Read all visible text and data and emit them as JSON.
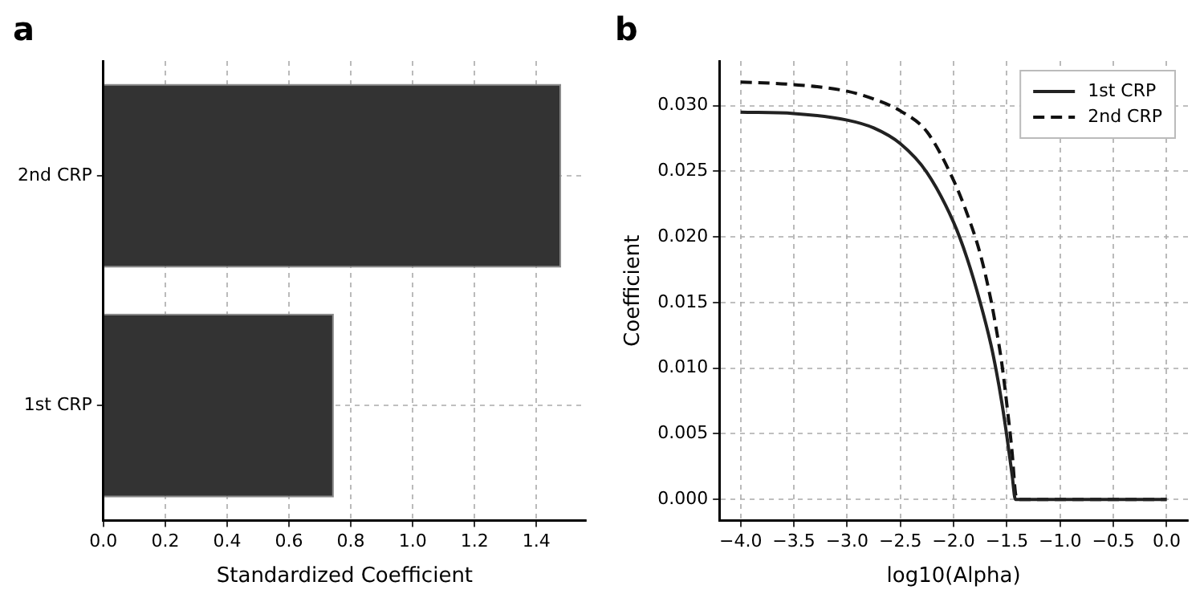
{
  "chart_data": [
    {
      "type": "bar",
      "title": "a",
      "orientation": "horizontal",
      "categories": [
        "2nd CRP",
        "1st CRP"
      ],
      "values": [
        1.48,
        0.745
      ],
      "color": "#333333",
      "xlabel": "Standardized Coefficient",
      "xlim": [
        0,
        1.56
      ],
      "xticks": [
        {
          "value": 0,
          "label": "0.0"
        },
        {
          "value": 0.2,
          "label": "0.2"
        },
        {
          "value": 0.4,
          "label": "0.4"
        },
        {
          "value": 0.6,
          "label": "0.6"
        },
        {
          "value": 0.8,
          "label": "0.8"
        },
        {
          "value": 1,
          "label": "1.0"
        },
        {
          "value": 1.2,
          "label": "1.2"
        },
        {
          "value": 1.4,
          "label": "1.4"
        }
      ],
      "grid": true,
      "legend": false
    },
    {
      "type": "line",
      "title": "b",
      "xlabel": "log10(Alpha)",
      "ylabel": "Coefficient",
      "x": [
        -4,
        -3.5,
        -3,
        -2.75,
        -2.5,
        -2.25,
        -2,
        -1.875,
        -1.75,
        -1.65,
        -1.6,
        -1.55,
        -1.5,
        -1.45,
        -1.42,
        -1.4,
        -1,
        -0.5,
        0
      ],
      "series": [
        {
          "name": "1st CRP",
          "color": "#222222",
          "line_style": "solid",
          "values": [
            0.0295,
            0.0294,
            0.0289,
            0.0283,
            0.0271,
            0.0249,
            0.0211,
            0.0184,
            0.015,
            0.0118,
            0.0098,
            0.0075,
            0.0048,
            0.0018,
            0,
            0,
            0,
            0,
            0
          ]
        },
        {
          "name": "2nd CRP",
          "color": "#111111",
          "line_style": "dashed",
          "values": [
            0.0318,
            0.0316,
            0.0311,
            0.0305,
            0.0296,
            0.028,
            0.0243,
            0.0218,
            0.0187,
            0.0152,
            0.013,
            0.0105,
            0.0072,
            0.0035,
            0.0005,
            0,
            0,
            0,
            0
          ]
        }
      ],
      "xlim": [
        -4.2,
        0.2
      ],
      "xticks": [
        {
          "value": -4,
          "label": "−4.0"
        },
        {
          "value": -3.5,
          "label": "−3.5"
        },
        {
          "value": -3,
          "label": "−3.0"
        },
        {
          "value": -2.5,
          "label": "−2.5"
        },
        {
          "value": -2,
          "label": "−2.0"
        },
        {
          "value": -1.5,
          "label": "−1.5"
        },
        {
          "value": -1,
          "label": "−1.0"
        },
        {
          "value": -0.5,
          "label": "−0.5"
        },
        {
          "value": 0,
          "label": "0.0"
        }
      ],
      "ylim": [
        -0.0016,
        0.0334
      ],
      "yticks": [
        {
          "value": 0,
          "label": "0.000"
        },
        {
          "value": 0.005,
          "label": "0.005"
        },
        {
          "value": 0.01,
          "label": "0.010"
        },
        {
          "value": 0.015,
          "label": "0.015"
        },
        {
          "value": 0.02,
          "label": "0.020"
        },
        {
          "value": 0.025,
          "label": "0.025"
        },
        {
          "value": 0.03,
          "label": "0.030"
        }
      ],
      "grid": true,
      "legend": "top right",
      "marker": "none"
    }
  ]
}
